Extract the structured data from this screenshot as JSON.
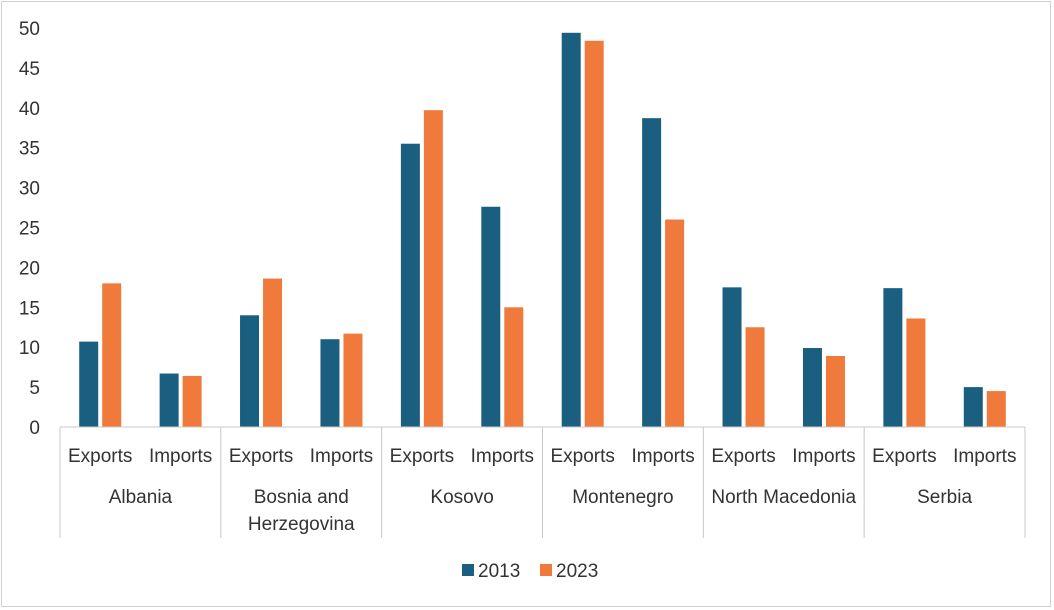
{
  "chart_data": {
    "type": "bar",
    "title": "",
    "xlabel": "",
    "ylabel": "",
    "ylim": [
      0,
      50
    ],
    "yticks": [
      "0",
      "5",
      "10",
      "15",
      "20",
      "25",
      "30",
      "35",
      "40",
      "45",
      "50"
    ],
    "groups": [
      {
        "label_lines": [
          "Albania"
        ],
        "categories": [
          "Exports",
          "Imports"
        ]
      },
      {
        "label_lines": [
          "Bosnia and",
          "Herzegovina"
        ],
        "categories": [
          "Exports",
          "Imports"
        ]
      },
      {
        "label_lines": [
          "Kosovo"
        ],
        "categories": [
          "Exports",
          "Imports"
        ]
      },
      {
        "label_lines": [
          "Montenegro"
        ],
        "categories": [
          "Exports",
          "Imports"
        ]
      },
      {
        "label_lines": [
          "North Macedonia"
        ],
        "categories": [
          "Exports",
          "Imports"
        ]
      },
      {
        "label_lines": [
          "Serbia"
        ],
        "categories": [
          "Exports",
          "Imports"
        ]
      }
    ],
    "series": [
      {
        "name": "2013",
        "color": "#1b5f80",
        "values": [
          10.7,
          6.7,
          14.0,
          11.0,
          35.5,
          27.6,
          49.4,
          38.7,
          17.5,
          9.9,
          17.4,
          5.0
        ]
      },
      {
        "name": "2023",
        "color": "#ef7a3b",
        "values": [
          18.0,
          6.4,
          18.6,
          11.7,
          39.7,
          15.0,
          48.4,
          26.0,
          12.5,
          8.9,
          13.6,
          4.5
        ]
      }
    ],
    "legend_position": "bottom"
  }
}
